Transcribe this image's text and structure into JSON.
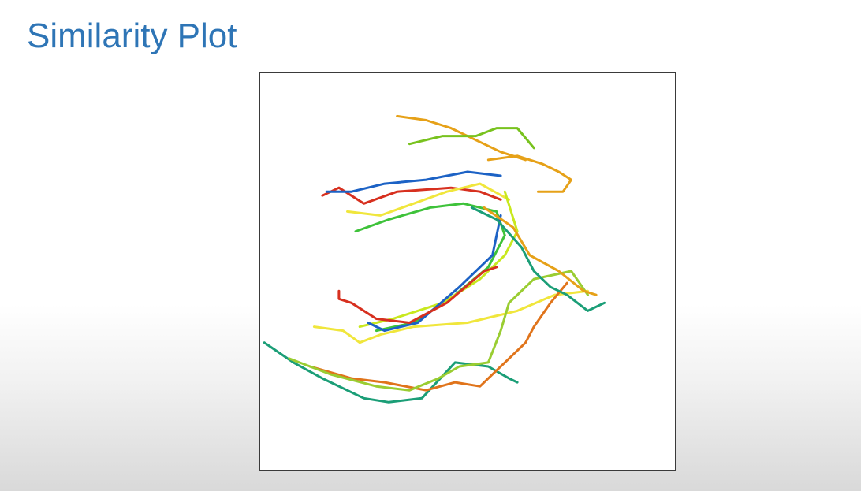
{
  "slide": {
    "title": "Similarity Plot"
  },
  "chart_data": {
    "type": "line",
    "title": "",
    "xlabel": "",
    "ylabel": "",
    "grid": false,
    "legend": "none",
    "xlim": [
      0,
      100
    ],
    "ylim": [
      0,
      100
    ],
    "series": [
      {
        "color": "#d7301f",
        "points": [
          [
            15,
            69
          ],
          [
            19,
            71
          ],
          [
            25,
            67
          ],
          [
            33,
            70
          ],
          [
            46,
            71
          ],
          [
            53,
            70
          ],
          [
            58,
            68
          ]
        ]
      },
      {
        "color": "#e6a118",
        "points": [
          [
            33,
            89
          ],
          [
            40,
            88
          ],
          [
            46,
            86
          ],
          [
            52,
            83
          ],
          [
            58,
            80
          ],
          [
            64,
            78
          ]
        ]
      },
      {
        "color": "#78c21e",
        "points": [
          [
            36,
            82
          ],
          [
            44,
            84
          ],
          [
            52,
            84
          ],
          [
            57,
            86
          ],
          [
            62,
            86
          ],
          [
            66,
            81
          ]
        ]
      },
      {
        "color": "#1c62c5",
        "points": [
          [
            16,
            70
          ],
          [
            22,
            70
          ],
          [
            30,
            72
          ],
          [
            40,
            73
          ],
          [
            50,
            75
          ],
          [
            58,
            74
          ]
        ]
      },
      {
        "color": "#f0e63c",
        "points": [
          [
            21,
            65
          ],
          [
            29,
            64
          ],
          [
            37,
            67
          ],
          [
            45,
            70
          ],
          [
            53,
            72
          ],
          [
            60,
            68
          ]
        ]
      },
      {
        "color": "#3ec23a",
        "points": [
          [
            23,
            60
          ],
          [
            31,
            63
          ],
          [
            41,
            66
          ],
          [
            49,
            67
          ],
          [
            57,
            65
          ],
          [
            59,
            59
          ],
          [
            55,
            51
          ],
          [
            47,
            44
          ],
          [
            37,
            37
          ],
          [
            28,
            35
          ]
        ]
      },
      {
        "color": "#e6a118",
        "points": [
          [
            55,
            78
          ],
          [
            62,
            79
          ],
          [
            68,
            77
          ],
          [
            72,
            75
          ],
          [
            75,
            73
          ],
          [
            73,
            70
          ],
          [
            67,
            70
          ]
        ]
      },
      {
        "color": "#c8e81e",
        "points": [
          [
            59,
            70
          ],
          [
            62,
            60
          ],
          [
            59,
            54
          ],
          [
            53,
            48
          ],
          [
            44,
            42
          ],
          [
            32,
            38
          ],
          [
            24,
            36
          ]
        ]
      },
      {
        "color": "#1c62c5",
        "points": [
          [
            58,
            64
          ],
          [
            56,
            54
          ],
          [
            48,
            46
          ],
          [
            38,
            37
          ],
          [
            30,
            35
          ],
          [
            26,
            37
          ]
        ]
      },
      {
        "color": "#d7301f",
        "points": [
          [
            19,
            45
          ],
          [
            19,
            43
          ],
          [
            22,
            42
          ],
          [
            28,
            38
          ],
          [
            36,
            37
          ],
          [
            45,
            42
          ],
          [
            54,
            50
          ],
          [
            57,
            51
          ]
        ]
      },
      {
        "color": "#f0e63c",
        "points": [
          [
            13,
            36
          ],
          [
            20,
            35
          ],
          [
            24,
            32
          ],
          [
            29,
            34
          ],
          [
            37,
            36
          ],
          [
            50,
            37
          ],
          [
            62,
            40
          ],
          [
            71,
            44
          ],
          [
            79,
            45
          ]
        ]
      },
      {
        "color": "#1b9e77",
        "points": [
          [
            1,
            32
          ],
          [
            8,
            27
          ],
          [
            15,
            23
          ],
          [
            25,
            18
          ],
          [
            31,
            17
          ],
          [
            39,
            18
          ],
          [
            47,
            27
          ],
          [
            55,
            26
          ],
          [
            60,
            23
          ],
          [
            62,
            22
          ]
        ]
      },
      {
        "color": "#e0741b",
        "points": [
          [
            12,
            26
          ],
          [
            22,
            23
          ],
          [
            30,
            22
          ],
          [
            40,
            20
          ],
          [
            47,
            22
          ],
          [
            53,
            21
          ],
          [
            60,
            28
          ],
          [
            64,
            32
          ],
          [
            66,
            36
          ],
          [
            70,
            42
          ],
          [
            74,
            47
          ]
        ]
      },
      {
        "color": "#9acd32",
        "points": [
          [
            7,
            28
          ],
          [
            17,
            24
          ],
          [
            28,
            21
          ],
          [
            36,
            20
          ],
          [
            43,
            23
          ],
          [
            48,
            26
          ],
          [
            55,
            27
          ],
          [
            58,
            35
          ],
          [
            60,
            42
          ],
          [
            66,
            48
          ],
          [
            75,
            50
          ],
          [
            79,
            44
          ]
        ]
      },
      {
        "color": "#1b9e77",
        "points": [
          [
            51,
            66
          ],
          [
            57,
            63
          ],
          [
            63,
            56
          ],
          [
            66,
            50
          ],
          [
            70,
            46
          ],
          [
            74,
            44
          ],
          [
            79,
            40
          ],
          [
            83,
            42
          ]
        ]
      },
      {
        "color": "#e6a118",
        "points": [
          [
            54,
            66
          ],
          [
            61,
            61
          ],
          [
            65,
            54
          ],
          [
            72,
            50
          ],
          [
            78,
            45
          ],
          [
            81,
            44
          ]
        ]
      }
    ]
  }
}
